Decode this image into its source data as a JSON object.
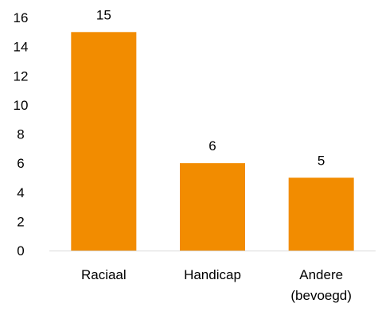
{
  "chart_data": {
    "type": "bar",
    "categories": [
      [
        "Raciaal"
      ],
      [
        "Handicap"
      ],
      [
        "Andere",
        "(bevoegd)"
      ]
    ],
    "values": [
      15,
      6,
      5
    ],
    "data_labels": [
      "15",
      "6",
      "5"
    ],
    "ylim": [
      0,
      16
    ],
    "yticks": [
      "0",
      "2",
      "4",
      "6",
      "8",
      "10",
      "12",
      "14",
      "16"
    ],
    "bar_color": "#F28C00",
    "axis_color": "#D9D9D9",
    "grid": false,
    "legend": "none",
    "title": "",
    "xlabel": "",
    "ylabel": ""
  }
}
